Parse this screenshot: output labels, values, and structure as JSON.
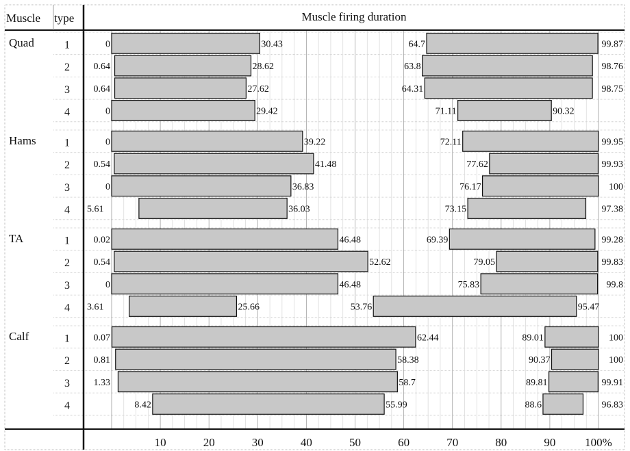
{
  "chart_data": {
    "type": "bar",
    "title": "Muscle firing duration",
    "header_muscle": "Muscle",
    "header_type": "type",
    "x_ticks": [
      "10",
      "20",
      "30",
      "40",
      "50",
      "60",
      "70",
      "80",
      "90",
      "100%"
    ],
    "xlim": [
      0,
      100
    ],
    "grid": true,
    "bar_color": "#c8c8c8",
    "groups": [
      {
        "muscle": "Quad",
        "rows": [
          {
            "type": "1",
            "segments": [
              [
                0,
                30.43
              ],
              [
                64.7,
                99.87
              ]
            ]
          },
          {
            "type": "2",
            "segments": [
              [
                0.64,
                28.62
              ],
              [
                63.8,
                98.76
              ]
            ]
          },
          {
            "type": "3",
            "segments": [
              [
                0.64,
                27.62
              ],
              [
                64.31,
                98.75
              ]
            ]
          },
          {
            "type": "4",
            "segments": [
              [
                0,
                29.42
              ],
              [
                71.11,
                90.32
              ]
            ]
          }
        ]
      },
      {
        "muscle": "Hams",
        "rows": [
          {
            "type": "1",
            "segments": [
              [
                0,
                39.22
              ],
              [
                72.11,
                99.95
              ]
            ]
          },
          {
            "type": "2",
            "segments": [
              [
                0.54,
                41.48
              ],
              [
                77.62,
                99.93
              ]
            ]
          },
          {
            "type": "3",
            "segments": [
              [
                0,
                36.83
              ],
              [
                76.17,
                100
              ]
            ]
          },
          {
            "type": "4",
            "segments": [
              [
                5.61,
                36.03
              ],
              [
                73.15,
                97.38
              ]
            ]
          }
        ]
      },
      {
        "muscle": "TA",
        "rows": [
          {
            "type": "1",
            "segments": [
              [
                0.02,
                46.48
              ],
              [
                69.39,
                99.28
              ]
            ]
          },
          {
            "type": "2",
            "segments": [
              [
                0.54,
                52.62
              ],
              [
                79.05,
                99.83
              ]
            ]
          },
          {
            "type": "3",
            "segments": [
              [
                0,
                46.48
              ],
              [
                75.83,
                99.8
              ]
            ]
          },
          {
            "type": "4",
            "segments": [
              [
                3.61,
                25.66
              ],
              [
                53.76,
                95.47
              ]
            ]
          }
        ]
      },
      {
        "muscle": "Calf",
        "rows": [
          {
            "type": "1",
            "segments": [
              [
                0.07,
                62.44
              ],
              [
                89.01,
                100
              ]
            ]
          },
          {
            "type": "2",
            "segments": [
              [
                0.81,
                58.38
              ],
              [
                90.37,
                100
              ]
            ]
          },
          {
            "type": "3",
            "segments": [
              [
                1.33,
                58.7
              ],
              [
                89.81,
                99.91
              ]
            ]
          },
          {
            "type": "4",
            "segments": [
              [
                8.42,
                55.99
              ],
              [
                88.6,
                96.83
              ]
            ]
          }
        ]
      }
    ]
  }
}
